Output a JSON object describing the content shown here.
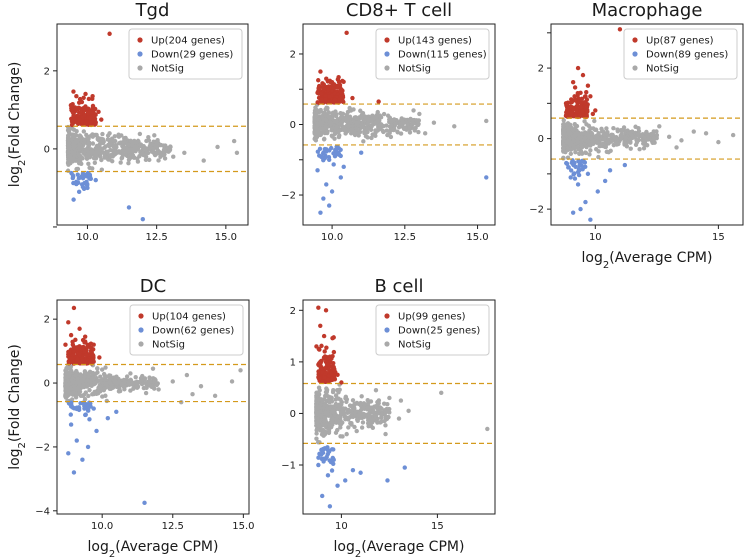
{
  "colors": {
    "up": "#c0392b",
    "down": "#6d8fd6",
    "notsig": "#a9a9a9",
    "threshold": "#d49a1c"
  },
  "legend_labels": {
    "notsig": "NotSig"
  },
  "chart_data": [
    {
      "type": "scatter",
      "title": "Tgd",
      "xlabel": "",
      "ylabel": "log2(Fold Change)",
      "xlim": [
        8.9,
        15.8
      ],
      "ylim": [
        -1.95,
        3.2
      ],
      "xticks": [
        10,
        12.5,
        15
      ],
      "xtick_labels": [
        "10.0",
        "12.5",
        "15.0"
      ],
      "yticks": [
        -2,
        0,
        2
      ],
      "ytick_labels": [
        "",
        "0",
        "2"
      ],
      "threshold": 0.58,
      "legend": {
        "up": "Up(204 genes)",
        "down": "Down(29 genes)"
      },
      "up_points": [
        [
          10.8,
          2.95
        ],
        [
          9.6,
          1.35
        ],
        [
          9.8,
          1.2
        ],
        [
          10.2,
          1.1
        ],
        [
          9.7,
          1.05
        ],
        [
          10.4,
          0.95
        ],
        [
          9.5,
          0.9
        ],
        [
          9.9,
          0.85
        ],
        [
          10.1,
          0.8
        ],
        [
          10.5,
          0.75
        ],
        [
          9.6,
          0.7
        ],
        [
          10.3,
          0.68
        ]
      ],
      "down_points": [
        [
          11.5,
          -1.5
        ],
        [
          12.0,
          -1.8
        ],
        [
          9.7,
          -1.1
        ],
        [
          10.0,
          -1.0
        ],
        [
          9.6,
          -0.9
        ],
        [
          10.3,
          -0.8
        ],
        [
          9.8,
          -0.7
        ],
        [
          9.5,
          -1.3
        ]
      ],
      "notsig_points": [
        [
          11.0,
          0.2
        ],
        [
          11.5,
          0.1
        ],
        [
          12.0,
          -0.1
        ],
        [
          12.5,
          0.15
        ],
        [
          13.0,
          0.05
        ],
        [
          13.5,
          -0.1
        ],
        [
          14.2,
          -0.3
        ],
        [
          14.7,
          0.05
        ],
        [
          15.3,
          0.2
        ],
        [
          15.4,
          -0.1
        ],
        [
          12.2,
          0.3
        ],
        [
          11.8,
          -0.25
        ],
        [
          13.1,
          -0.2
        ],
        [
          10.8,
          0.4
        ],
        [
          11.2,
          -0.35
        ]
      ],
      "notsig_band": {
        "x": [
          9.3,
          13.0
        ],
        "spread": 0.5
      }
    },
    {
      "type": "scatter",
      "title": "CD8+ T cell",
      "xlabel": "",
      "ylabel": "",
      "xlim": [
        9.0,
        15.6
      ],
      "ylim": [
        -2.85,
        2.85
      ],
      "xticks": [
        10,
        12.5,
        15
      ],
      "xtick_labels": [
        "10.0",
        "12.5",
        "15.0"
      ],
      "yticks": [
        -2,
        -1,
        0,
        1,
        2
      ],
      "ytick_labels": [
        "−2",
        "",
        "0",
        "",
        "2"
      ],
      "threshold": 0.58,
      "legend": {
        "up": "Up(143 genes)",
        "down": "Down(115 genes)"
      },
      "up_points": [
        [
          10.5,
          2.6
        ],
        [
          9.6,
          1.5
        ],
        [
          9.8,
          1.3
        ],
        [
          10.0,
          1.2
        ],
        [
          9.7,
          1.1
        ],
        [
          10.3,
          1.0
        ],
        [
          9.5,
          0.9
        ],
        [
          9.9,
          0.8
        ],
        [
          10.7,
          0.75
        ],
        [
          11.6,
          0.65
        ],
        [
          10.1,
          0.7
        ]
      ],
      "down_points": [
        [
          9.6,
          -2.5
        ],
        [
          9.9,
          -2.3
        ],
        [
          9.7,
          -2.1
        ],
        [
          10.0,
          -1.9
        ],
        [
          9.8,
          -1.7
        ],
        [
          10.3,
          -1.5
        ],
        [
          9.5,
          -1.3
        ],
        [
          10.4,
          -1.2
        ],
        [
          9.9,
          -1.0
        ],
        [
          10.1,
          -0.9
        ],
        [
          15.3,
          -1.5
        ],
        [
          11.0,
          -0.8
        ]
      ],
      "notsig_points": [
        [
          11.5,
          0.2
        ],
        [
          12.0,
          0.1
        ],
        [
          12.5,
          -0.1
        ],
        [
          13.0,
          0.3
        ],
        [
          13.5,
          0.05
        ],
        [
          14.2,
          -0.05
        ],
        [
          15.3,
          0.1
        ],
        [
          12.8,
          0.4
        ],
        [
          11.9,
          -0.3
        ],
        [
          13.2,
          -0.25
        ]
      ],
      "notsig_band": {
        "x": [
          9.4,
          13.0
        ],
        "spread": 0.5
      }
    },
    {
      "type": "scatter",
      "title": "Macrophage",
      "xlabel": "log2(Average CPM)",
      "ylabel": "",
      "xlim": [
        8.2,
        16.0
      ],
      "ylim": [
        -2.45,
        3.25
      ],
      "xticks": [
        10,
        15
      ],
      "xtick_labels": [
        "10",
        "15"
      ],
      "yticks": [
        -2,
        -1,
        0,
        1,
        2,
        3
      ],
      "ytick_labels": [
        "−2",
        "",
        "0",
        "",
        "2",
        ""
      ],
      "threshold": 0.58,
      "legend": {
        "up": "Up(87 genes)",
        "down": "Down(89 genes)"
      },
      "up_points": [
        [
          11.0,
          3.1
        ],
        [
          9.3,
          2.0
        ],
        [
          9.5,
          1.8
        ],
        [
          9.1,
          1.6
        ],
        [
          9.7,
          1.5
        ],
        [
          9.4,
          1.3
        ],
        [
          9.8,
          1.2
        ],
        [
          9.2,
          1.1
        ],
        [
          9.6,
          1.0
        ],
        [
          9.0,
          0.9
        ],
        [
          10.0,
          0.8
        ],
        [
          9.9,
          0.7
        ]
      ],
      "down_points": [
        [
          9.1,
          -2.1
        ],
        [
          9.4,
          -2.0
        ],
        [
          9.8,
          -2.3
        ],
        [
          9.6,
          -1.8
        ],
        [
          10.1,
          -1.5
        ],
        [
          9.3,
          -1.3
        ],
        [
          10.4,
          -1.2
        ],
        [
          9.0,
          -1.1
        ],
        [
          9.7,
          -1.0
        ],
        [
          10.6,
          -0.9
        ],
        [
          9.2,
          -0.8
        ],
        [
          11.2,
          -0.75
        ]
      ],
      "notsig_points": [
        [
          11.5,
          0.2
        ],
        [
          12.0,
          -0.1
        ],
        [
          12.5,
          0.1
        ],
        [
          13.0,
          0.05
        ],
        [
          13.5,
          -0.05
        ],
        [
          14.0,
          0.2
        ],
        [
          14.5,
          0.15
        ],
        [
          15.0,
          -0.1
        ],
        [
          15.6,
          0.1
        ],
        [
          12.6,
          0.35
        ],
        [
          11.8,
          -0.3
        ],
        [
          13.3,
          -0.25
        ]
      ],
      "notsig_band": {
        "x": [
          8.7,
          12.5
        ],
        "spread": 0.5
      }
    },
    {
      "type": "scatter",
      "title": "DC",
      "xlabel": "log2(Average CPM)",
      "ylabel": "log2(Fold Change)",
      "xlim": [
        8.4,
        15.2
      ],
      "ylim": [
        -4.1,
        2.6
      ],
      "xticks": [
        10,
        12.5,
        15
      ],
      "xtick_labels": [
        "10.0",
        "12.5",
        "15.0"
      ],
      "yticks": [
        -4,
        -2,
        0,
        2
      ],
      "ytick_labels": [
        "−4",
        "−2",
        "0",
        "2"
      ],
      "threshold": 0.58,
      "legend": {
        "up": "Up(104 genes)",
        "down": "Down(62 genes)"
      },
      "up_points": [
        [
          9.0,
          2.35
        ],
        [
          8.8,
          1.9
        ],
        [
          9.2,
          1.7
        ],
        [
          8.9,
          1.5
        ],
        [
          9.4,
          1.3
        ],
        [
          8.7,
          1.2
        ],
        [
          9.1,
          1.1
        ],
        [
          9.6,
          1.0
        ],
        [
          8.8,
          0.9
        ],
        [
          9.9,
          0.8
        ],
        [
          9.3,
          0.7
        ]
      ],
      "down_points": [
        [
          9.0,
          -2.8
        ],
        [
          9.3,
          -2.4
        ],
        [
          8.8,
          -2.2
        ],
        [
          9.5,
          -2.0
        ],
        [
          9.1,
          -1.8
        ],
        [
          9.8,
          -1.5
        ],
        [
          8.9,
          -1.3
        ],
        [
          10.2,
          -1.1
        ],
        [
          9.4,
          -1.0
        ],
        [
          10.5,
          -0.9
        ],
        [
          11.5,
          -3.75
        ],
        [
          9.7,
          -0.8
        ]
      ],
      "notsig_points": [
        [
          11.0,
          0.3
        ],
        [
          11.5,
          0.1
        ],
        [
          12.0,
          -0.2
        ],
        [
          12.5,
          0.05
        ],
        [
          13.0,
          0.25
        ],
        [
          13.5,
          -0.1
        ],
        [
          14.0,
          -0.4
        ],
        [
          14.6,
          0.05
        ],
        [
          14.9,
          0.4
        ],
        [
          12.8,
          -0.6
        ],
        [
          11.8,
          0.45
        ],
        [
          13.2,
          -0.35
        ]
      ],
      "notsig_band": {
        "x": [
          8.7,
          12.0
        ],
        "spread": 0.5
      }
    },
    {
      "type": "scatter",
      "title": "B cell",
      "xlabel": "log2(Average CPM)",
      "ylabel": "",
      "xlim": [
        8.0,
        18.0
      ],
      "ylim": [
        -1.95,
        2.2
      ],
      "xticks": [
        10,
        15
      ],
      "xtick_labels": [
        "10",
        "15"
      ],
      "yticks": [
        -1,
        0,
        1,
        2
      ],
      "ytick_labels": [
        "−1",
        "0",
        "1",
        "2"
      ],
      "threshold": 0.58,
      "legend": {
        "up": "Up(99 genes)",
        "down": "Down(25 genes)"
      },
      "up_points": [
        [
          8.8,
          2.05
        ],
        [
          9.2,
          2.0
        ],
        [
          8.9,
          1.7
        ],
        [
          9.1,
          1.5
        ],
        [
          8.7,
          1.3
        ],
        [
          9.4,
          1.1
        ],
        [
          8.9,
          1.0
        ],
        [
          9.6,
          0.9
        ],
        [
          9.0,
          0.8
        ],
        [
          9.8,
          0.75
        ],
        [
          9.3,
          0.65
        ],
        [
          10.0,
          0.6
        ]
      ],
      "down_points": [
        [
          9.4,
          -1.8
        ],
        [
          9.0,
          -1.6
        ],
        [
          9.8,
          -1.4
        ],
        [
          10.2,
          -1.3
        ],
        [
          9.3,
          -1.2
        ],
        [
          10.6,
          -1.1
        ],
        [
          8.8,
          -1.0
        ],
        [
          11.0,
          -1.15
        ],
        [
          12.4,
          -1.3
        ],
        [
          13.3,
          -1.05
        ],
        [
          9.6,
          -0.9
        ]
      ],
      "notsig_points": [
        [
          11.0,
          0.2
        ],
        [
          11.5,
          -0.2
        ],
        [
          12.0,
          0.1
        ],
        [
          12.5,
          0.3
        ],
        [
          13.0,
          -0.1
        ],
        [
          13.5,
          0.05
        ],
        [
          15.2,
          0.4
        ],
        [
          17.6,
          -0.3
        ],
        [
          12.3,
          -0.4
        ],
        [
          11.8,
          0.45
        ],
        [
          13.1,
          0.25
        ]
      ],
      "notsig_band": {
        "x": [
          8.7,
          12.5
        ],
        "spread": 0.5
      }
    }
  ]
}
